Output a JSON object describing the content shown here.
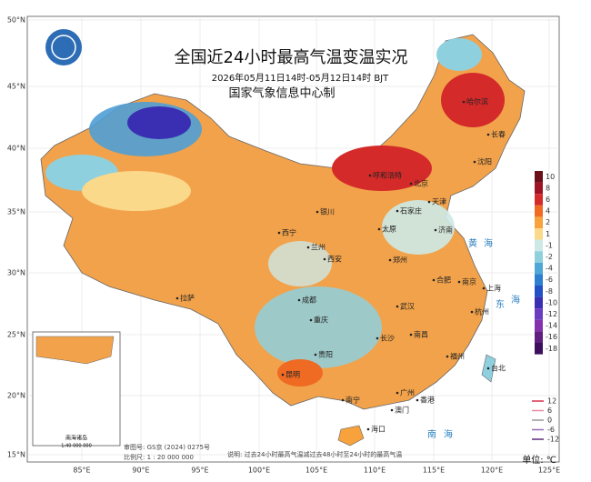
{
  "header": {
    "title": "全国近24小时最高气温变温实况",
    "period": "2026年05月11日14时-05月12日14时 BJT",
    "agency": "国家气象信息中心制"
  },
  "lat_labels": [
    "50°N",
    "45°N",
    "40°N",
    "35°N",
    "30°N",
    "25°N",
    "20°N",
    "15°N"
  ],
  "lon_labels": [
    "85°E",
    "90°E",
    "95°E",
    "100°E",
    "105°E",
    "110°E",
    "115°E",
    "120°E",
    "125°E"
  ],
  "legend": {
    "levels": [
      {
        "value": 10,
        "color": "#6b0f1a"
      },
      {
        "value": 8,
        "color": "#9e1422"
      },
      {
        "value": 6,
        "color": "#d42a2a"
      },
      {
        "value": 4,
        "color": "#ef6a22"
      },
      {
        "value": 2,
        "color": "#f7a23c"
      },
      {
        "value": 1,
        "color": "#fbd98a"
      },
      {
        "value": -1,
        "color": "#cde9e6"
      },
      {
        "value": -2,
        "color": "#8fd0df"
      },
      {
        "value": -4,
        "color": "#4fa7d6"
      },
      {
        "value": -6,
        "color": "#2e7fd0"
      },
      {
        "value": -8,
        "color": "#2350c6"
      },
      {
        "value": -10,
        "color": "#3a2fb2"
      },
      {
        "value": -12,
        "color": "#6a3cc0"
      },
      {
        "value": -14,
        "color": "#8431ae"
      },
      {
        "value": -16,
        "color": "#5e1f80"
      },
      {
        "value": -18,
        "color": "#3d0f5c"
      }
    ],
    "lines": [
      {
        "value": 12,
        "color": "#d9304a"
      },
      {
        "value": 6,
        "color": "#e88aa0"
      },
      {
        "value": 0,
        "color": "#999999"
      },
      {
        "value": -6,
        "color": "#9a6ab8"
      },
      {
        "value": -12,
        "color": "#5a2a7a"
      }
    ],
    "unit": "单位: ℃"
  },
  "places": [
    "哈尔滨",
    "长春",
    "沈阳",
    "呼和浩特",
    "北京",
    "天津",
    "石家庄",
    "济南",
    "太原",
    "银川",
    "西宁",
    "兰州",
    "西安",
    "郑州",
    "合肥",
    "南京",
    "上海",
    "杭州",
    "武汉",
    "成都",
    "拉萨",
    "重庆",
    "贵阳",
    "长沙",
    "南昌",
    "福州",
    "昆明",
    "南宁",
    "广州",
    "香港",
    "澳门",
    "海口",
    "台北"
  ],
  "seas": [
    "黄",
    "海",
    "东",
    "海",
    "南",
    "海"
  ],
  "inset": {
    "title": "南海诸岛",
    "scale": "1:40 000 000"
  },
  "footer": {
    "approval": "审图号: GS京 (2024) 0275号",
    "scale": "比例尺: 1 : 20 000 000",
    "note": "说明: 过去24小时最高气温减过去48小时至24小时的最高气温"
  }
}
